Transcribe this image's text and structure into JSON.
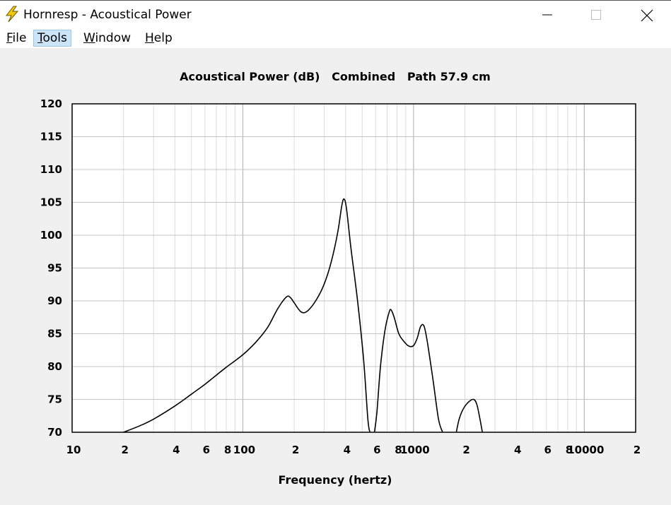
{
  "window": {
    "title": "Hornresp - Acoustical Power",
    "icon": "lightning-bolt-icon",
    "accent_color": "#f2c811"
  },
  "menu": [
    {
      "accel": "F",
      "rest": "ile"
    },
    {
      "accel": "T",
      "rest": "ools"
    },
    {
      "accel": "W",
      "rest": "indow"
    },
    {
      "accel": "H",
      "rest": "elp"
    }
  ],
  "chart_data": {
    "type": "line",
    "title": "Acoustical Power (dB)   Combined   Path 57.9 cm",
    "xlabel": "Frequency (hertz)",
    "ylabel": "",
    "x_scale": "log",
    "xlim": [
      10,
      20000
    ],
    "ylim": [
      70,
      120
    ],
    "grid": true,
    "y_ticks": [
      70,
      75,
      80,
      85,
      90,
      95,
      100,
      105,
      110,
      115,
      120
    ],
    "x_tick_labels": [
      {
        "value": 10,
        "label": "10"
      },
      {
        "value": 20,
        "label": "2"
      },
      {
        "value": 40,
        "label": "4"
      },
      {
        "value": 60,
        "label": "6"
      },
      {
        "value": 80,
        "label": "8"
      },
      {
        "value": 100,
        "label": "100"
      },
      {
        "value": 200,
        "label": "2"
      },
      {
        "value": 400,
        "label": "4"
      },
      {
        "value": 600,
        "label": "6"
      },
      {
        "value": 800,
        "label": "8"
      },
      {
        "value": 1000,
        "label": "1000"
      },
      {
        "value": 2000,
        "label": "2"
      },
      {
        "value": 4000,
        "label": "4"
      },
      {
        "value": 6000,
        "label": "6"
      },
      {
        "value": 8000,
        "label": "8"
      },
      {
        "value": 10000,
        "label": "10000"
      },
      {
        "value": 20000,
        "label": "2"
      }
    ],
    "series": [
      {
        "segments": [
          [
            [
              20,
              70
            ],
            [
              25,
              71
            ],
            [
              30,
              72
            ],
            [
              40,
              74
            ],
            [
              50,
              75.8
            ],
            [
              60,
              77.3
            ],
            [
              70,
              78.7
            ],
            [
              80,
              79.9
            ],
            [
              100,
              81.8
            ],
            [
              120,
              83.8
            ],
            [
              140,
              86
            ],
            [
              160,
              88.8
            ],
            [
              180,
              90.6
            ],
            [
              190,
              90.5
            ],
            [
              200,
              89.7
            ],
            [
              220,
              88.3
            ],
            [
              240,
              88.5
            ],
            [
              270,
              90.2
            ],
            [
              300,
              92.6
            ],
            [
              330,
              96
            ],
            [
              360,
              100.5
            ],
            [
              380,
              104.5
            ],
            [
              392,
              105.5
            ],
            [
              405,
              104
            ],
            [
              430,
              98
            ],
            [
              470,
              90
            ],
            [
              510,
              81
            ],
            [
              540,
              72
            ],
            [
              555,
              70
            ]
          ],
          [
            [
              590,
              70
            ],
            [
              610,
              73
            ],
            [
              640,
              80
            ],
            [
              680,
              85.5
            ],
            [
              720,
              88.3
            ],
            [
              740,
              88.6
            ],
            [
              770,
              87.5
            ],
            [
              820,
              85
            ],
            [
              880,
              83.8
            ],
            [
              940,
              83.1
            ],
            [
              1000,
              83.2
            ],
            [
              1050,
              84.3
            ],
            [
              1100,
              86.1
            ],
            [
              1150,
              86.2
            ],
            [
              1200,
              84
            ],
            [
              1300,
              78
            ],
            [
              1400,
              72
            ],
            [
              1480,
              70
            ]
          ],
          [
            [
              1780,
              70
            ],
            [
              1850,
              72
            ],
            [
              1950,
              73.5
            ],
            [
              2100,
              74.6
            ],
            [
              2250,
              75
            ],
            [
              2350,
              74.2
            ],
            [
              2450,
              72
            ],
            [
              2530,
              70
            ]
          ]
        ]
      }
    ]
  }
}
